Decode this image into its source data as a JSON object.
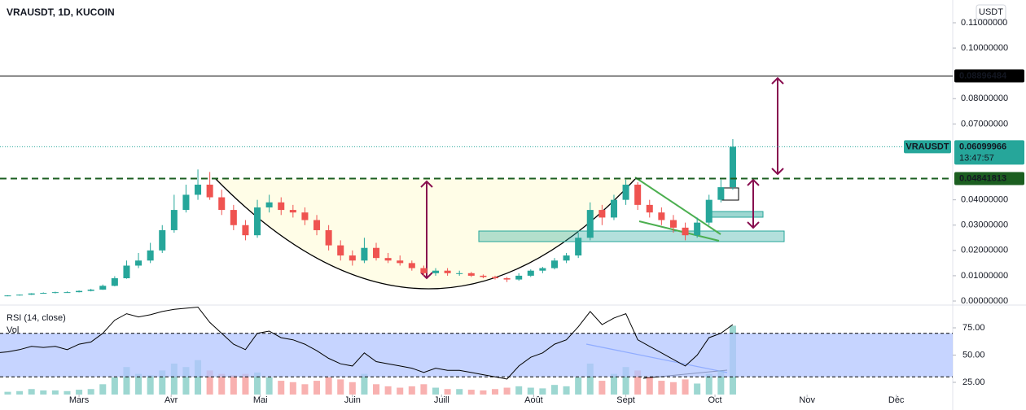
{
  "header": {
    "title": "VRAUSDT, 1D, KUCOIN",
    "currency_button": "USDT"
  },
  "chart_data": {
    "type": "candlestick",
    "x": [
      -28,
      -24,
      -20,
      -16,
      -12,
      -8,
      -4,
      0,
      4,
      8,
      12,
      16,
      20,
      24,
      28,
      32,
      36,
      40,
      44,
      48,
      52,
      56,
      60,
      64,
      68,
      72,
      76,
      80,
      84,
      88,
      92,
      96,
      100,
      104,
      108,
      112,
      116,
      120,
      124,
      128,
      132,
      136,
      140,
      144,
      148,
      152,
      156,
      160,
      164,
      168,
      172,
      176,
      180,
      184,
      188,
      192,
      196,
      200,
      204,
      208,
      212,
      216,
      220
    ],
    "ohlc": [
      [
        0.0019,
        0.0022,
        0.0018,
        0.002
      ],
      [
        0.002,
        0.0023,
        0.0019,
        0.0022
      ],
      [
        0.0022,
        0.0026,
        0.0021,
        0.0025
      ],
      [
        0.0025,
        0.0031,
        0.0024,
        0.003
      ],
      [
        0.003,
        0.0034,
        0.0029,
        0.0032
      ],
      [
        0.0032,
        0.0037,
        0.003,
        0.0035
      ],
      [
        0.0035,
        0.0038,
        0.0033,
        0.0035
      ],
      [
        0.0035,
        0.0042,
        0.0034,
        0.004
      ],
      [
        0.004,
        0.0048,
        0.0038,
        0.0045
      ],
      [
        0.0045,
        0.0065,
        0.0044,
        0.006
      ],
      [
        0.006,
        0.0098,
        0.0058,
        0.009
      ],
      [
        0.009,
        0.016,
        0.0088,
        0.014
      ],
      [
        0.014,
        0.019,
        0.013,
        0.016
      ],
      [
        0.016,
        0.023,
        0.015,
        0.02
      ],
      [
        0.02,
        0.03,
        0.019,
        0.028
      ],
      [
        0.028,
        0.042,
        0.027,
        0.036
      ],
      [
        0.036,
        0.046,
        0.035,
        0.042
      ],
      [
        0.042,
        0.052,
        0.04,
        0.046
      ],
      [
        0.046,
        0.051,
        0.04,
        0.041
      ],
      [
        0.041,
        0.044,
        0.034,
        0.036
      ],
      [
        0.036,
        0.038,
        0.028,
        0.03
      ],
      [
        0.03,
        0.032,
        0.024,
        0.026
      ],
      [
        0.026,
        0.04,
        0.025,
        0.037
      ],
      [
        0.037,
        0.042,
        0.035,
        0.039
      ],
      [
        0.039,
        0.041,
        0.034,
        0.036
      ],
      [
        0.036,
        0.038,
        0.033,
        0.035
      ],
      [
        0.035,
        0.037,
        0.03,
        0.032
      ],
      [
        0.032,
        0.034,
        0.026,
        0.028
      ],
      [
        0.028,
        0.03,
        0.02,
        0.022
      ],
      [
        0.022,
        0.024,
        0.016,
        0.018
      ],
      [
        0.018,
        0.02,
        0.014,
        0.016
      ],
      [
        0.016,
        0.025,
        0.015,
        0.021
      ],
      [
        0.021,
        0.023,
        0.016,
        0.017
      ],
      [
        0.017,
        0.019,
        0.015,
        0.016
      ],
      [
        0.016,
        0.018,
        0.014,
        0.015
      ],
      [
        0.015,
        0.016,
        0.012,
        0.013
      ],
      [
        0.013,
        0.014,
        0.01,
        0.011
      ],
      [
        0.011,
        0.013,
        0.01,
        0.012
      ],
      [
        0.012,
        0.013,
        0.01,
        0.011
      ],
      [
        0.011,
        0.012,
        0.01,
        0.011
      ],
      [
        0.011,
        0.0115,
        0.0095,
        0.01
      ],
      [
        0.01,
        0.0105,
        0.009,
        0.0095
      ],
      [
        0.0095,
        0.01,
        0.0085,
        0.009
      ],
      [
        0.009,
        0.0095,
        0.0075,
        0.0085
      ],
      [
        0.0085,
        0.011,
        0.008,
        0.01
      ],
      [
        0.01,
        0.0125,
        0.0095,
        0.012
      ],
      [
        0.012,
        0.0135,
        0.011,
        0.013
      ],
      [
        0.013,
        0.017,
        0.0125,
        0.016
      ],
      [
        0.016,
        0.019,
        0.015,
        0.018
      ],
      [
        0.018,
        0.027,
        0.017,
        0.025
      ],
      [
        0.025,
        0.039,
        0.024,
        0.036
      ],
      [
        0.036,
        0.038,
        0.03,
        0.033
      ],
      [
        0.033,
        0.042,
        0.032,
        0.04
      ],
      [
        0.04,
        0.048,
        0.038,
        0.046
      ],
      [
        0.046,
        0.047,
        0.036,
        0.038
      ],
      [
        0.038,
        0.04,
        0.033,
        0.035
      ],
      [
        0.035,
        0.037,
        0.03,
        0.032
      ],
      [
        0.032,
        0.034,
        0.027,
        0.029
      ],
      [
        0.029,
        0.031,
        0.024,
        0.026
      ],
      [
        0.026,
        0.033,
        0.025,
        0.031
      ],
      [
        0.031,
        0.042,
        0.03,
        0.04
      ],
      [
        0.04,
        0.048,
        0.039,
        0.045
      ],
      [
        0.045,
        0.064,
        0.044,
        0.061
      ]
    ],
    "up_color": "#26a69a",
    "down_color": "#ef5350",
    "xlim": [
      -26.6,
      294
    ],
    "xticks": [
      {
        "value": 0,
        "label": "Mars"
      },
      {
        "value": 31,
        "label": "Avr"
      },
      {
        "value": 61,
        "label": "Mai"
      },
      {
        "value": 92,
        "label": "Juin"
      },
      {
        "value": 122,
        "label": "Juill"
      },
      {
        "value": 153,
        "label": "Août"
      },
      {
        "value": 184,
        "label": "Sept"
      },
      {
        "value": 214,
        "label": "Oct"
      },
      {
        "value": 245,
        "label": "Nov"
      },
      {
        "value": 275,
        "label": "Déc"
      }
    ],
    "ylim": [
      -0.0016,
      0.119
    ],
    "yticks": [
      {
        "value": 0,
        "label": "0.00000000"
      },
      {
        "value": 0.01,
        "label": "0.01000000"
      },
      {
        "value": 0.02,
        "label": "0.02000000"
      },
      {
        "value": 0.03,
        "label": "0.03000000"
      },
      {
        "value": 0.04,
        "label": "0.04000000"
      },
      {
        "value": 0.07,
        "label": "0.07000000"
      },
      {
        "value": 0.08,
        "label": "0.08000000"
      },
      {
        "value": 0.1,
        "label": "0.10000000"
      },
      {
        "value": 0.11,
        "label": "0.11000000"
      }
    ],
    "price_lines": [
      {
        "value": 0.08896484,
        "color": "#000000",
        "style": "solid"
      },
      {
        "value": 0.04841813,
        "color": "#1b5e20",
        "style": "dashed"
      }
    ],
    "last_price": {
      "symbol": "VRAUSDT",
      "value": 0.06099966,
      "countdown": "13:47:57",
      "color": "#26a69a"
    },
    "rsi": {
      "title": "RSI (14, close)",
      "volume_title": "Vol",
      "values": [
        52,
        53,
        55,
        58,
        57,
        58,
        55,
        60,
        62,
        70,
        82,
        88,
        85,
        87,
        90,
        92,
        93,
        94,
        80,
        70,
        60,
        55,
        70,
        72,
        66,
        64,
        60,
        54,
        47,
        42,
        40,
        52,
        44,
        42,
        40,
        38,
        34,
        38,
        36,
        36,
        34,
        32,
        30,
        28,
        40,
        48,
        52,
        60,
        64,
        76,
        90,
        78,
        84,
        88,
        64,
        58,
        52,
        46,
        40,
        50,
        66,
        70,
        78
      ],
      "volume": [
        5,
        4,
        5,
        8,
        6,
        6,
        5,
        7,
        8,
        15,
        25,
        40,
        30,
        28,
        35,
        45,
        40,
        50,
        35,
        30,
        28,
        30,
        32,
        25,
        20,
        18,
        15,
        20,
        25,
        22,
        18,
        30,
        15,
        12,
        10,
        12,
        15,
        10,
        8,
        8,
        7,
        6,
        8,
        10,
        12,
        10,
        9,
        14,
        12,
        25,
        45,
        20,
        30,
        40,
        35,
        25,
        20,
        18,
        22,
        16,
        30,
        35,
        100
      ],
      "vlim": [
        0,
        130
      ],
      "ylim": [
        13.8,
        95.9
      ],
      "yticks": [
        {
          "value": 25,
          "label": "25.00"
        },
        {
          "value": 50,
          "label": "50.00"
        },
        {
          "value": 75,
          "label": "75.00"
        }
      ],
      "band": [
        30,
        70
      ],
      "color": "#000000",
      "band_color": "#b3c6ff"
    }
  }
}
